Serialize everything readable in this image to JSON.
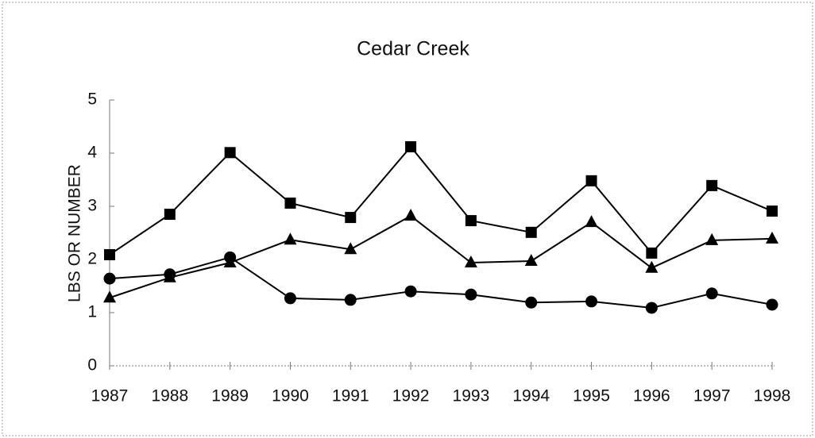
{
  "chart_data": {
    "type": "line",
    "title": "Cedar Creek",
    "y_label": "LBS OR NUMBER",
    "categories": [
      "1987",
      "1988",
      "1989",
      "1990",
      "1991",
      "1992",
      "1993",
      "1994",
      "1995",
      "1996",
      "1997",
      "1998"
    ],
    "series": [
      {
        "color": "#000000",
        "marker": "square",
        "values": [
          2.09,
          2.85,
          4.01,
          3.06,
          2.79,
          4.12,
          2.73,
          2.51,
          3.48,
          2.12,
          3.39,
          2.91
        ]
      },
      {
        "color": "#000000",
        "marker": "triangle",
        "values": [
          1.28,
          1.66,
          1.94,
          2.37,
          2.19,
          2.82,
          1.94,
          1.97,
          2.7,
          1.84,
          2.36,
          2.39
        ]
      },
      {
        "color": "#000000",
        "marker": "circle",
        "values": [
          1.64,
          1.72,
          2.04,
          1.27,
          1.24,
          1.4,
          1.34,
          1.19,
          1.21,
          1.09,
          1.36,
          1.15
        ]
      }
    ],
    "ylim": [
      0,
      5
    ],
    "yticks": [
      0,
      1,
      2,
      3,
      4,
      5
    ],
    "grid": false
  }
}
